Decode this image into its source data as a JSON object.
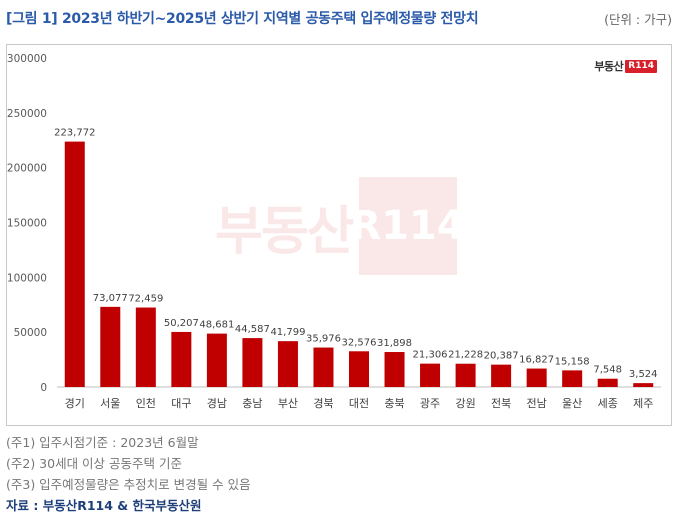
{
  "header": {
    "title": "[그림 1] 2023년 하반기~2025년 상반기 지역별 공동주택 입주예정물량 전망치",
    "unit": "(단위 : 가구)"
  },
  "logo": {
    "text": "부동산",
    "box": "R114"
  },
  "watermark": {
    "text": "부동산",
    "box": "R114"
  },
  "colors": {
    "bar": "#c00000",
    "title": "#2a5aa8",
    "source": "#1f3f7a"
  },
  "chart_data": {
    "type": "bar",
    "categories": [
      "경기",
      "서울",
      "인천",
      "대구",
      "경남",
      "충남",
      "부산",
      "경북",
      "대전",
      "충북",
      "광주",
      "강원",
      "전북",
      "전남",
      "울산",
      "세종",
      "제주"
    ],
    "values": [
      223772,
      73077,
      72459,
      50207,
      48681,
      44587,
      41799,
      35976,
      32576,
      31898,
      21306,
      21228,
      20387,
      16827,
      15158,
      7548,
      3524
    ],
    "data_labels": [
      "223,772",
      "73,077",
      "72,459",
      "50,207",
      "48,681",
      "44,587",
      "41,799",
      "35,976",
      "32,576",
      "31,898",
      "21,306",
      "21,228",
      "20,387",
      "16,827",
      "15,158",
      "7,548",
      "3,524"
    ],
    "ylim": [
      0,
      300000
    ],
    "yticks": [
      "0",
      "50000",
      "100000",
      "150000",
      "200000",
      "250000",
      "300000"
    ],
    "grid": false,
    "xlabel": "",
    "ylabel": ""
  },
  "notes": [
    "(주1) 입주시점기준 : 2023년 6월말",
    "(주2) 30세대 이상 공동주택 기준",
    "(주3) 입주예정물량은 추정치로 변경될 수 있음"
  ],
  "source": "자료 : 부동산R114 & 한국부동산원"
}
